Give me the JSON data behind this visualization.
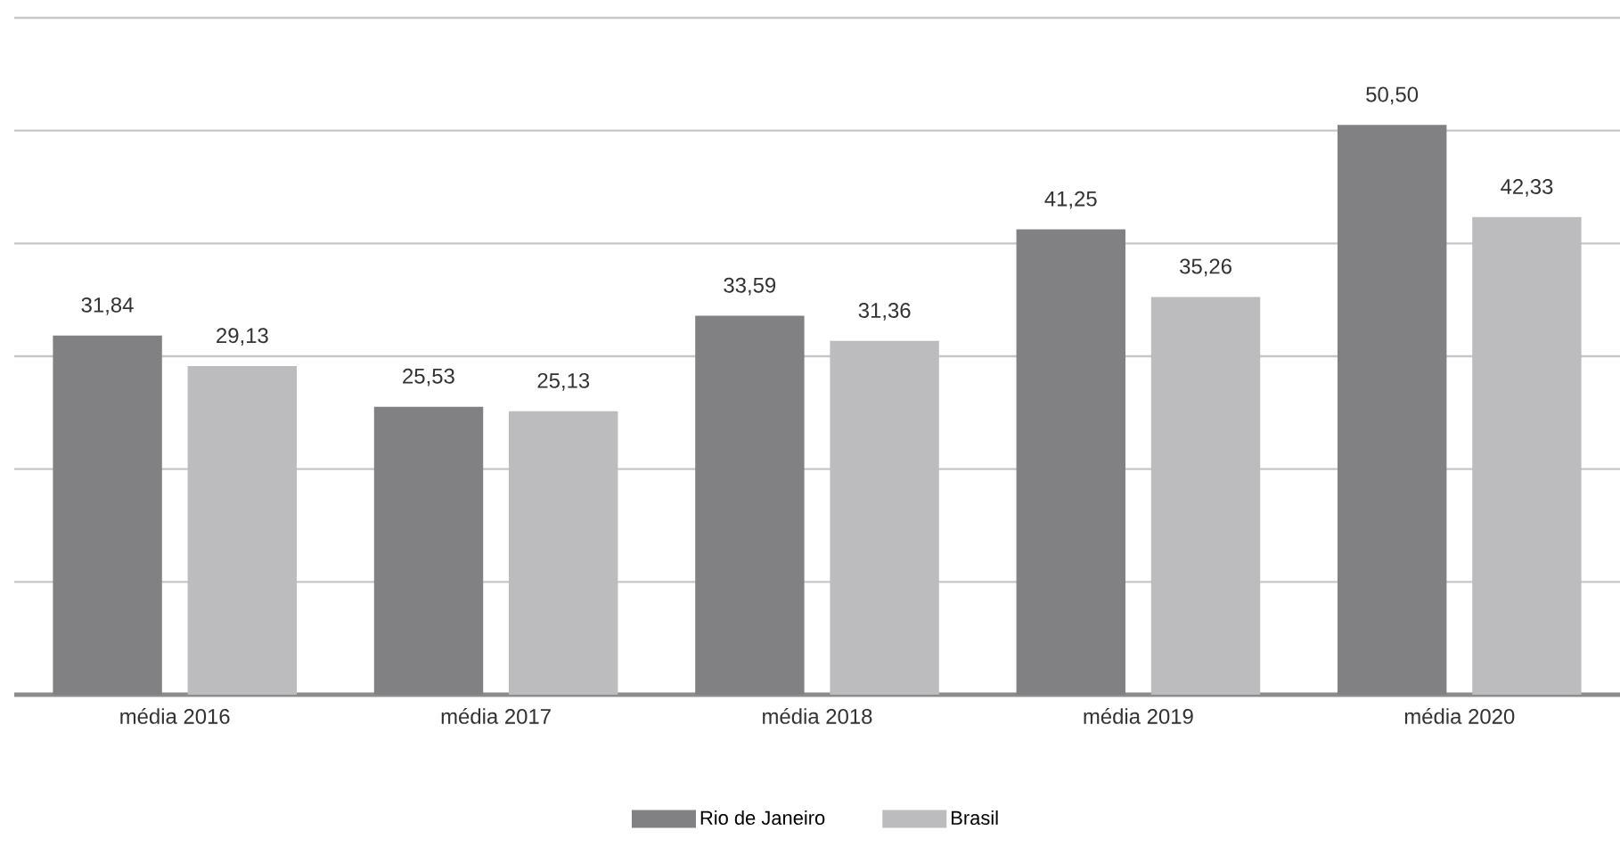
{
  "chart_data": {
    "type": "bar",
    "categories": [
      "média 2016",
      "média 2017",
      "média 2018",
      "média 2019",
      "média 2020"
    ],
    "series": [
      {
        "name": "Rio de Janeiro",
        "color": "#818184",
        "values": [
          31.84,
          25.53,
          33.59,
          41.25,
          50.5
        ],
        "value_labels": [
          "31,84",
          "25,53",
          "33,59",
          "41,25",
          "50,50"
        ]
      },
      {
        "name": "Brasil",
        "color": "#bcbcbe",
        "values": [
          29.13,
          25.13,
          31.36,
          35.26,
          42.33
        ],
        "value_labels": [
          "29,13",
          "25,13",
          "31,36",
          "35,26",
          "42,33"
        ]
      }
    ],
    "ylim": [
      0,
      60
    ],
    "yticks": [
      {
        "value": 0,
        "label": null
      },
      {
        "value": 10,
        "label": null
      },
      {
        "value": 20,
        "label": null
      },
      {
        "value": 30,
        "label": null
      },
      {
        "value": 40,
        "label": null
      },
      {
        "value": 50,
        "label": null
      },
      {
        "value": 60,
        "label": null
      }
    ],
    "tick_labels": "x",
    "grid": "y",
    "legend": "bottom"
  }
}
